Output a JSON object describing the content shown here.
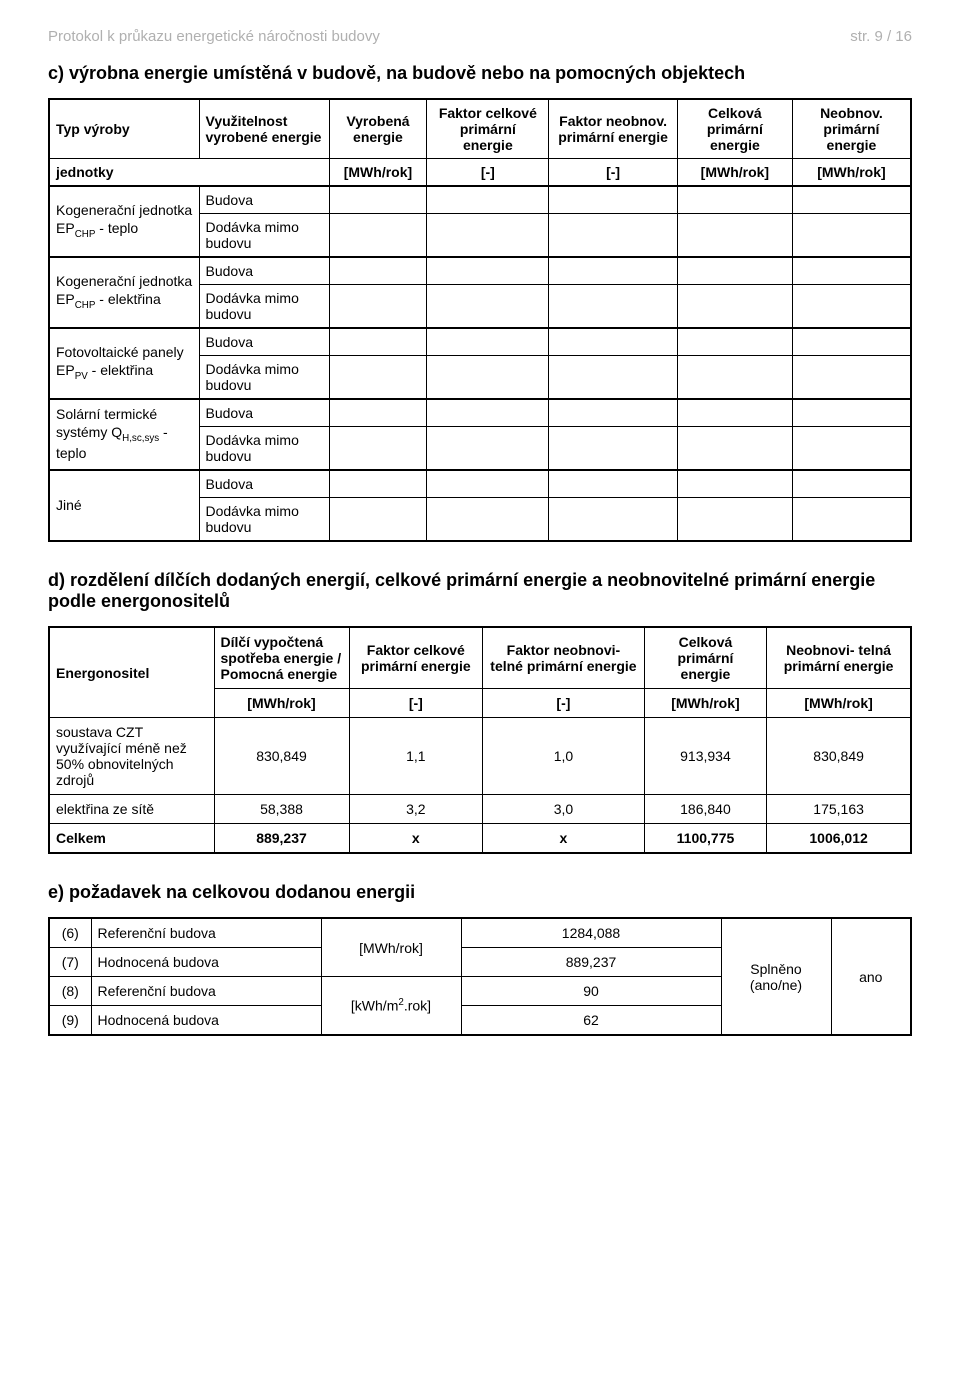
{
  "header": {
    "left": "Protokol k průkazu energetické náročnosti budovy",
    "right": "str. 9 / 16"
  },
  "section_c": {
    "title": "c) výrobna energie umístěná v budově, na budově nebo na pomocných objektech",
    "columns": {
      "c1": "Typ výroby",
      "c2": "Využitelnost vyrobené energie",
      "c3": "Vyrobená energie",
      "c4": "Faktor celkové primární energie",
      "c5": "Faktor neobnov. primární energie",
      "c6": "Celková primární energie",
      "c7": "Neobnov. primární energie"
    },
    "units_row_label": "jednotky",
    "units": [
      "[MWh/rok]",
      "[-]",
      "[-]",
      "[MWh/rok]",
      "[MWh/rok]"
    ],
    "sub_labels": {
      "budova": "Budova",
      "dodavka": "Dodávka mimo budovu"
    },
    "rows": [
      {
        "label_html": "Kogenerační jednotka EP<sub>CHP</sub> - teplo"
      },
      {
        "label_html": "Kogenerační jednotka EP<sub>CHP</sub> - elektřina"
      },
      {
        "label_html": "Fotovoltaické panely EP<sub>PV</sub> - elektřina"
      },
      {
        "label_html": "Solární termické systémy Q<sub>H,sc,sys</sub> - teplo"
      },
      {
        "label_html": "Jiné"
      }
    ]
  },
  "section_d": {
    "title": "d) rozdělení dílčích dodaných energií, celkové primární energie a neobnovitelné primární energie podle energonositelů",
    "columns": {
      "c1": "Energonositel",
      "c2": "Dílčí vypočtená spotřeba energie / Pomocná energie",
      "c3": "Faktor celkové primární energie",
      "c4": "Faktor neobnovi- telné primární energie",
      "c5": "Celková primární energie",
      "c6": "Neobnovi- telná primární energie"
    },
    "units": [
      "[MWh/rok]",
      "[-]",
      "[-]",
      "[MWh/rok]",
      "[MWh/rok]"
    ],
    "rows": [
      {
        "label": "soustava CZT využívající méně než 50% obnovitelných zdrojů",
        "v": [
          "830,849",
          "1,1",
          "1,0",
          "913,934",
          "830,849"
        ]
      },
      {
        "label": "elektřina ze sítě",
        "v": [
          "58,388",
          "3,2",
          "3,0",
          "186,840",
          "175,163"
        ]
      }
    ],
    "totals": {
      "label": "Celkem",
      "v": [
        "889,237",
        "x",
        "x",
        "1100,775",
        "1006,012"
      ]
    }
  },
  "section_e": {
    "title": "e) požadavek na celkovou dodanou energii",
    "unit1": "[MWh/rok]",
    "unit2_html": "[kWh/m<sup>2</sup>.rok]",
    "splneno_label": "Splněno (ano/ne)",
    "splneno_value": "ano",
    "rows": [
      {
        "idx": "(6)",
        "label": "Referenční budova",
        "value": "1284,088"
      },
      {
        "idx": "(7)",
        "label": "Hodnocená budova",
        "value": "889,237"
      },
      {
        "idx": "(8)",
        "label": "Referenční budova",
        "value": "90"
      },
      {
        "idx": "(9)",
        "label": "Hodnocená budova",
        "value": "62"
      }
    ]
  }
}
